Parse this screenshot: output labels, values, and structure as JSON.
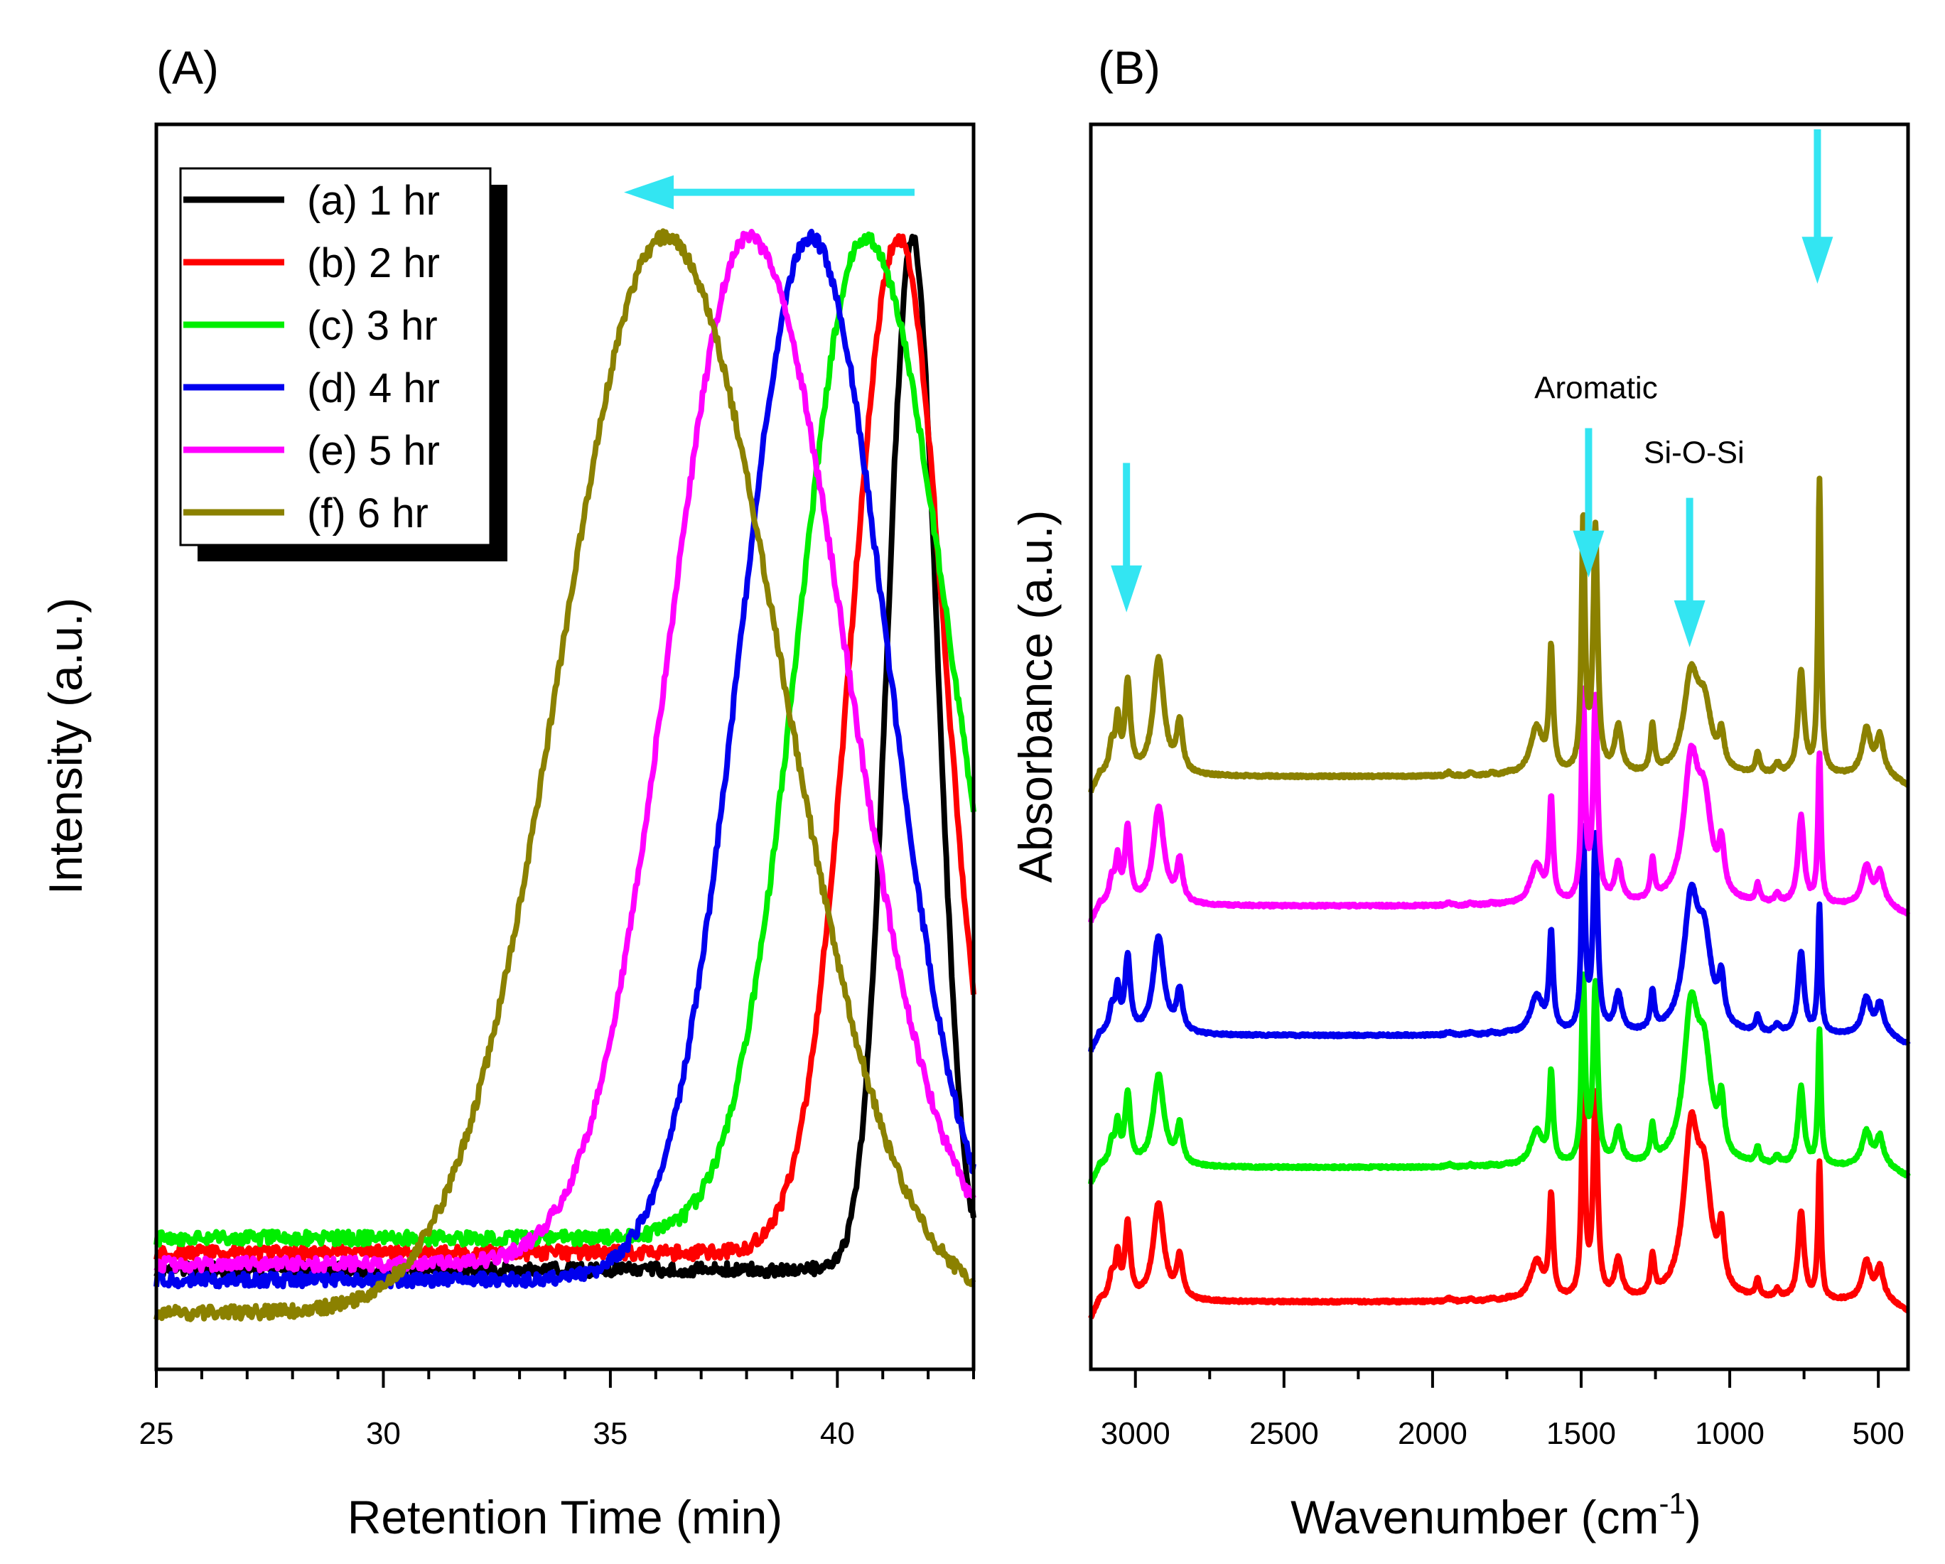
{
  "chart_data": [
    {
      "panel_label": "(A)",
      "type": "line",
      "title": "",
      "xlabel": "Retention Time (min)",
      "ylabel": "Intensity (a.u.)",
      "xlim": [
        25,
        43
      ],
      "ylim": [
        0,
        1.1
      ],
      "xticks": [
        25,
        30,
        35,
        40
      ],
      "xtick_labels": [
        "25",
        "30",
        "35",
        "40"
      ],
      "grid": false,
      "legend_position": "top-left",
      "annotation_arrow": {
        "color": "#33e5f2",
        "direction": "left",
        "from_x": 41.7,
        "to_x": 35.3,
        "y": 1.04
      },
      "series": [
        {
          "name": "(a) 1 hr",
          "color": "#000000",
          "baseline": 0.088,
          "peak_x": 41.65,
          "peak_y": 1.0,
          "sigma_left": 0.55,
          "sigma_right": 0.55
        },
        {
          "name": "(b) 2 hr",
          "color": "#ff0000",
          "baseline": 0.103,
          "peak_x": 41.35,
          "peak_y": 1.0,
          "sigma_left": 1.05,
          "sigma_right": 1.0
        },
        {
          "name": "(c) 3 hr",
          "color": "#00ee00",
          "baseline": 0.116,
          "peak_x": 40.6,
          "peak_y": 1.0,
          "sigma_left": 1.45,
          "sigma_right": 1.85
        },
        {
          "name": "(d) 4 hr",
          "color": "#0000ee",
          "baseline": 0.079,
          "peak_x": 39.4,
          "peak_y": 1.0,
          "sigma_left": 1.55,
          "sigma_right": 1.7
        },
        {
          "name": "(e) 5 hr",
          "color": "#ff00ff",
          "baseline": 0.093,
          "peak_x": 38.05,
          "peak_y": 1.0,
          "sigma_left": 1.75,
          "sigma_right": 2.1
        },
        {
          "name": "(f) 6 hr",
          "color": "#8b8100",
          "baseline": 0.05,
          "peak_x": 36.2,
          "peak_y": 1.0,
          "sigma_left": 2.3,
          "sigma_right": 2.55
        }
      ]
    },
    {
      "panel_label": "(B)",
      "type": "line",
      "title": "",
      "xlabel": "Wavenumber (cm",
      "xlabel_superscript": "-1",
      "xlabel_suffix": ")",
      "ylabel": "Absorbance (a.u.)",
      "xlim": [
        3150,
        400
      ],
      "ylim": [
        0,
        5
      ],
      "xticks": [
        3000,
        2500,
        2000,
        1500,
        1000,
        500
      ],
      "xtick_labels": [
        "3000",
        "2500",
        "2000",
        "1500",
        "1000",
        "500"
      ],
      "grid": false,
      "annotations": [
        {
          "text": "Aromatic",
          "x": 1450,
          "y": 3.9
        },
        {
          "text": "Si-O-Si",
          "x": 1120,
          "y": 3.64
        }
      ],
      "arrows": [
        {
          "x": 3030,
          "y_top": 3.64,
          "y_tip": 3.04,
          "color": "#33e5f2"
        },
        {
          "x": 1475,
          "y_top": 3.78,
          "y_tip": 3.18,
          "color": "#33e5f2"
        },
        {
          "x": 1135,
          "y_top": 3.5,
          "y_tip": 2.9,
          "color": "#33e5f2"
        },
        {
          "x": 705,
          "y_top": 4.98,
          "y_tip": 4.36,
          "color": "#33e5f2"
        }
      ],
      "peaks": [
        {
          "center": 3080,
          "width": 10,
          "rel": 0.3
        },
        {
          "center": 3060,
          "width": 9,
          "rel": 0.55
        },
        {
          "center": 3026,
          "width": 11,
          "rel": 1.0
        },
        {
          "center": 2922,
          "width": 22,
          "rel": 1.3
        },
        {
          "center": 2851,
          "width": 12,
          "rel": 0.55
        },
        {
          "center": 1945,
          "width": 10,
          "rel": 0.12
        },
        {
          "center": 1872,
          "width": 10,
          "rel": 0.08
        },
        {
          "center": 1802,
          "width": 10,
          "rel": 0.08
        },
        {
          "center": 1745,
          "width": 10,
          "rel": 0.06
        },
        {
          "center": 1650,
          "width": 25,
          "rel": 0.25
        },
        {
          "center": 1601,
          "width": 8,
          "rel": 0.65
        },
        {
          "center": 1493,
          "width": 7,
          "rel": 1.35
        },
        {
          "center": 1452,
          "width": 9,
          "rel": 1.3
        },
        {
          "center": 1375,
          "width": 14,
          "rel": 0.25
        },
        {
          "center": 1260,
          "width": 8,
          "rel": 0.25
        },
        {
          "center": 1130,
          "width": 30,
          "rel": 1.45
        },
        {
          "center": 1085,
          "width": 28,
          "rel": 0.9
        },
        {
          "center": 1028,
          "width": 11,
          "rel": 0.5
        },
        {
          "center": 906,
          "width": 8,
          "rel": 0.25
        },
        {
          "center": 840,
          "width": 10,
          "rel": 0.12
        },
        {
          "center": 760,
          "width": 12,
          "rel": 1.25
        },
        {
          "center": 698,
          "width": 6,
          "rel": 3.55
        },
        {
          "center": 540,
          "width": 18,
          "rel": 0.55
        },
        {
          "center": 495,
          "width": 14,
          "rel": 0.45
        }
      ],
      "series": [
        {
          "name": "(b) 2 hr",
          "color": "#ff0000",
          "baseline": 0.27,
          "scale": [
            0.3,
            0.1,
            0.62,
            0.22,
            0.28
          ],
          "si_factor": 2.0,
          "ph_factor": 0.55
        },
        {
          "name": "(c) 3 hr",
          "color": "#00ee00",
          "baseline": 0.81,
          "scale": [
            0.28,
            0.09,
            0.55,
            0.21,
            0.25
          ],
          "si_factor": 1.95,
          "ph_factor": 0.6
        },
        {
          "name": "(d) 4 hr",
          "color": "#0000ee",
          "baseline": 1.34,
          "scale": [
            0.3,
            0.1,
            0.6,
            0.2,
            0.26
          ],
          "si_factor": 1.75,
          "ph_factor": 0.55
        },
        {
          "name": "(e) 5 hr",
          "color": "#ff00ff",
          "baseline": 1.86,
          "scale": [
            0.3,
            0.1,
            0.62,
            0.22,
            0.28
          ],
          "si_factor": 1.7,
          "ph_factor": 0.6
        },
        {
          "name": "(f) 6 hr",
          "color": "#8b8100",
          "baseline": 2.38,
          "scale": [
            0.36,
            0.12,
            0.75,
            0.26,
            0.33
          ],
          "si_factor": 1.0,
          "ph_factor": 1.0
        }
      ]
    }
  ]
}
